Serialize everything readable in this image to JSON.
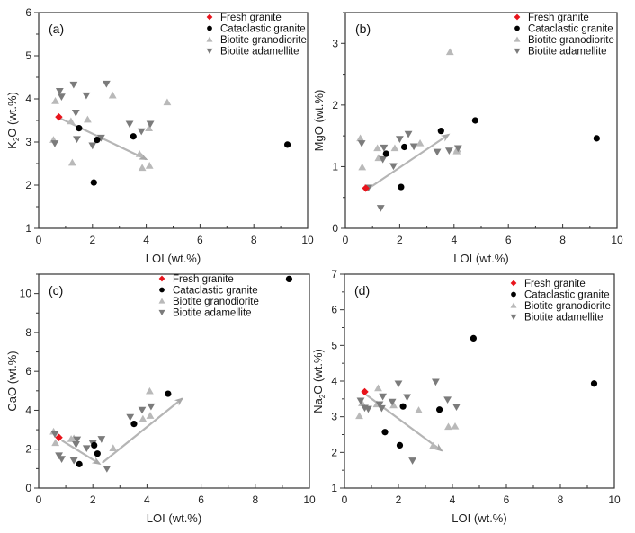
{
  "legend": [
    {
      "key": "fresh",
      "label": "Fresh granite",
      "color": "#e8141c",
      "marker": "diamond"
    },
    {
      "key": "cataclastic",
      "label": "Cataclastic granite",
      "color": "#000000",
      "marker": "circle"
    },
    {
      "key": "granodiorite",
      "label": "Biotite granodiorite",
      "color": "#b9b9b9",
      "marker": "triangle-up"
    },
    {
      "key": "adamellite",
      "label": "Biotite adamellite",
      "color": "#7b7b7b",
      "marker": "triangle-down"
    }
  ],
  "arrow_color": "#b5b5b5",
  "chart_data": [
    {
      "type": "scatter",
      "panel": "(a)",
      "xlabel": "LOI (wt.%)",
      "ylabel": "K2O (wt.%)",
      "ylabel_main": "K",
      "ylabel_sub": "2",
      "ylabel_rest": "O (wt.%)",
      "xlim": [
        0,
        10
      ],
      "ylim": [
        1,
        6
      ],
      "xticks": [
        0,
        2,
        4,
        6,
        8,
        10
      ],
      "yticks": [
        1,
        2,
        3,
        4,
        5,
        6
      ],
      "legend_position": "top-right",
      "series": {
        "fresh": [
          [
            0.75,
            3.58
          ]
        ],
        "cataclastic": [
          [
            1.5,
            3.32
          ],
          [
            2.17,
            3.05
          ],
          [
            2.05,
            2.06
          ],
          [
            3.52,
            3.13
          ],
          [
            9.25,
            2.94
          ]
        ],
        "granodiorite": [
          [
            0.62,
            3.95
          ],
          [
            0.55,
            3.05
          ],
          [
            1.2,
            3.48
          ],
          [
            1.25,
            2.52
          ],
          [
            1.82,
            3.52
          ],
          [
            2.75,
            4.08
          ],
          [
            3.75,
            2.72
          ],
          [
            3.85,
            2.4
          ],
          [
            4.12,
            2.45
          ],
          [
            4.1,
            3.32
          ],
          [
            4.78,
            3.92
          ]
        ],
        "adamellite": [
          [
            0.78,
            4.18
          ],
          [
            0.85,
            4.05
          ],
          [
            0.6,
            2.97
          ],
          [
            1.3,
            4.33
          ],
          [
            1.38,
            3.68
          ],
          [
            1.42,
            3.07
          ],
          [
            1.77,
            4.08
          ],
          [
            2.0,
            2.92
          ],
          [
            2.32,
            3.1
          ],
          [
            2.52,
            4.35
          ],
          [
            3.38,
            3.42
          ],
          [
            3.82,
            3.25
          ],
          [
            4.15,
            3.42
          ]
        ]
      },
      "arrows": [
        {
          "from": [
            0.8,
            3.55
          ],
          "to": [
            4.0,
            2.6
          ]
        }
      ]
    },
    {
      "type": "scatter",
      "panel": "(b)",
      "xlabel": "LOI (wt.%)",
      "ylabel": "MgO (wt.%)",
      "ylabel_main": "MgO (wt.%)",
      "ylabel_sub": "",
      "ylabel_rest": "",
      "xlim": [
        0,
        10
      ],
      "ylim": [
        0,
        3.5
      ],
      "xticks": [
        0,
        2,
        4,
        6,
        8,
        10
      ],
      "yticks": [
        0,
        1,
        2,
        3
      ],
      "legend_position": "top-right",
      "series": {
        "fresh": [
          [
            0.75,
            0.65
          ]
        ],
        "cataclastic": [
          [
            1.5,
            1.21
          ],
          [
            2.17,
            1.32
          ],
          [
            2.05,
            0.67
          ],
          [
            3.52,
            1.58
          ],
          [
            4.78,
            1.75
          ],
          [
            9.25,
            1.46
          ]
        ],
        "granodiorite": [
          [
            0.55,
            1.46
          ],
          [
            0.62,
            0.99
          ],
          [
            1.18,
            1.3
          ],
          [
            1.22,
            1.14
          ],
          [
            1.82,
            1.3
          ],
          [
            2.75,
            1.38
          ],
          [
            3.85,
            2.86
          ],
          [
            4.1,
            1.25
          ],
          [
            4.12,
            1.28
          ]
        ],
        "adamellite": [
          [
            0.6,
            1.38
          ],
          [
            0.85,
            0.66
          ],
          [
            1.3,
            0.33
          ],
          [
            1.38,
            1.12
          ],
          [
            1.42,
            1.31
          ],
          [
            1.77,
            1.01
          ],
          [
            2.0,
            1.45
          ],
          [
            2.32,
            1.53
          ],
          [
            2.52,
            1.33
          ],
          [
            3.38,
            1.24
          ],
          [
            3.82,
            1.26
          ],
          [
            4.15,
            1.3
          ]
        ]
      },
      "arrows": [
        {
          "from": [
            0.9,
            0.66
          ],
          "to": [
            3.8,
            1.52
          ]
        }
      ]
    },
    {
      "type": "scatter",
      "panel": "(c)",
      "xlabel": "LOI (wt.%)",
      "ylabel": "CaO (wt.%)",
      "ylabel_main": "CaO (wt.%)",
      "ylabel_sub": "",
      "ylabel_rest": "",
      "xlim": [
        0,
        10
      ],
      "ylim": [
        0,
        11
      ],
      "xticks": [
        0,
        2,
        4,
        6,
        8,
        10
      ],
      "yticks": [
        0,
        2,
        4,
        6,
        8,
        10
      ],
      "legend_position": "top-center",
      "series": {
        "fresh": [
          [
            0.75,
            2.6
          ]
        ],
        "cataclastic": [
          [
            1.5,
            1.23
          ],
          [
            2.05,
            2.2
          ],
          [
            2.17,
            1.77
          ],
          [
            3.52,
            3.3
          ],
          [
            4.78,
            4.85
          ],
          [
            9.25,
            10.75
          ]
        ],
        "granodiorite": [
          [
            0.55,
            2.9
          ],
          [
            0.62,
            2.32
          ],
          [
            1.2,
            2.52
          ],
          [
            1.3,
            2.55
          ],
          [
            2.75,
            2.05
          ],
          [
            3.85,
            3.55
          ],
          [
            4.12,
            3.72
          ],
          [
            4.1,
            4.98
          ]
        ],
        "adamellite": [
          [
            0.6,
            2.78
          ],
          [
            0.75,
            1.68
          ],
          [
            0.85,
            1.5
          ],
          [
            1.3,
            1.42
          ],
          [
            1.38,
            2.25
          ],
          [
            1.42,
            2.5
          ],
          [
            1.77,
            2.05
          ],
          [
            2.0,
            2.3
          ],
          [
            2.32,
            2.52
          ],
          [
            2.52,
            1.0
          ],
          [
            3.38,
            3.65
          ],
          [
            3.82,
            4.02
          ],
          [
            4.15,
            4.2
          ]
        ]
      },
      "arrows": [
        {
          "from": [
            0.85,
            2.45
          ],
          "to": [
            2.25,
            1.25
          ]
        },
        {
          "from": [
            2.35,
            1.3
          ],
          "to": [
            5.3,
            4.6
          ]
        }
      ]
    },
    {
      "type": "scatter",
      "panel": "(d)",
      "xlabel": "LOI (wt.%)",
      "ylabel": "Na2O (wt.%)",
      "ylabel_main": "Na",
      "ylabel_sub": "2",
      "ylabel_rest": "O (wt.%)",
      "xlim": [
        0,
        10
      ],
      "ylim": [
        1,
        7
      ],
      "xticks": [
        0,
        2,
        4,
        6,
        8,
        10
      ],
      "yticks": [
        1,
        2,
        3,
        4,
        5,
        6,
        7
      ],
      "legend_position": "top-right",
      "series": {
        "fresh": [
          [
            0.75,
            3.7
          ]
        ],
        "cataclastic": [
          [
            1.5,
            2.57
          ],
          [
            2.05,
            2.2
          ],
          [
            2.17,
            3.29
          ],
          [
            3.52,
            3.2
          ],
          [
            4.78,
            5.2
          ],
          [
            9.25,
            3.93
          ]
        ],
        "granodiorite": [
          [
            0.55,
            3.02
          ],
          [
            0.65,
            3.38
          ],
          [
            1.25,
            3.8
          ],
          [
            1.2,
            3.35
          ],
          [
            1.82,
            3.32
          ],
          [
            2.75,
            3.18
          ],
          [
            3.28,
            2.18
          ],
          [
            3.85,
            2.72
          ],
          [
            4.1,
            2.73
          ]
        ],
        "adamellite": [
          [
            0.6,
            3.45
          ],
          [
            0.75,
            3.25
          ],
          [
            0.88,
            3.22
          ],
          [
            1.3,
            3.35
          ],
          [
            1.38,
            3.24
          ],
          [
            1.42,
            3.57
          ],
          [
            1.77,
            3.42
          ],
          [
            2.0,
            3.93
          ],
          [
            2.32,
            3.55
          ],
          [
            2.52,
            1.77
          ],
          [
            3.38,
            3.98
          ],
          [
            3.82,
            3.48
          ],
          [
            4.15,
            3.28
          ]
        ]
      },
      "arrows": [
        {
          "from": [
            0.8,
            3.62
          ],
          "to": [
            3.6,
            2.05
          ]
        }
      ]
    }
  ]
}
